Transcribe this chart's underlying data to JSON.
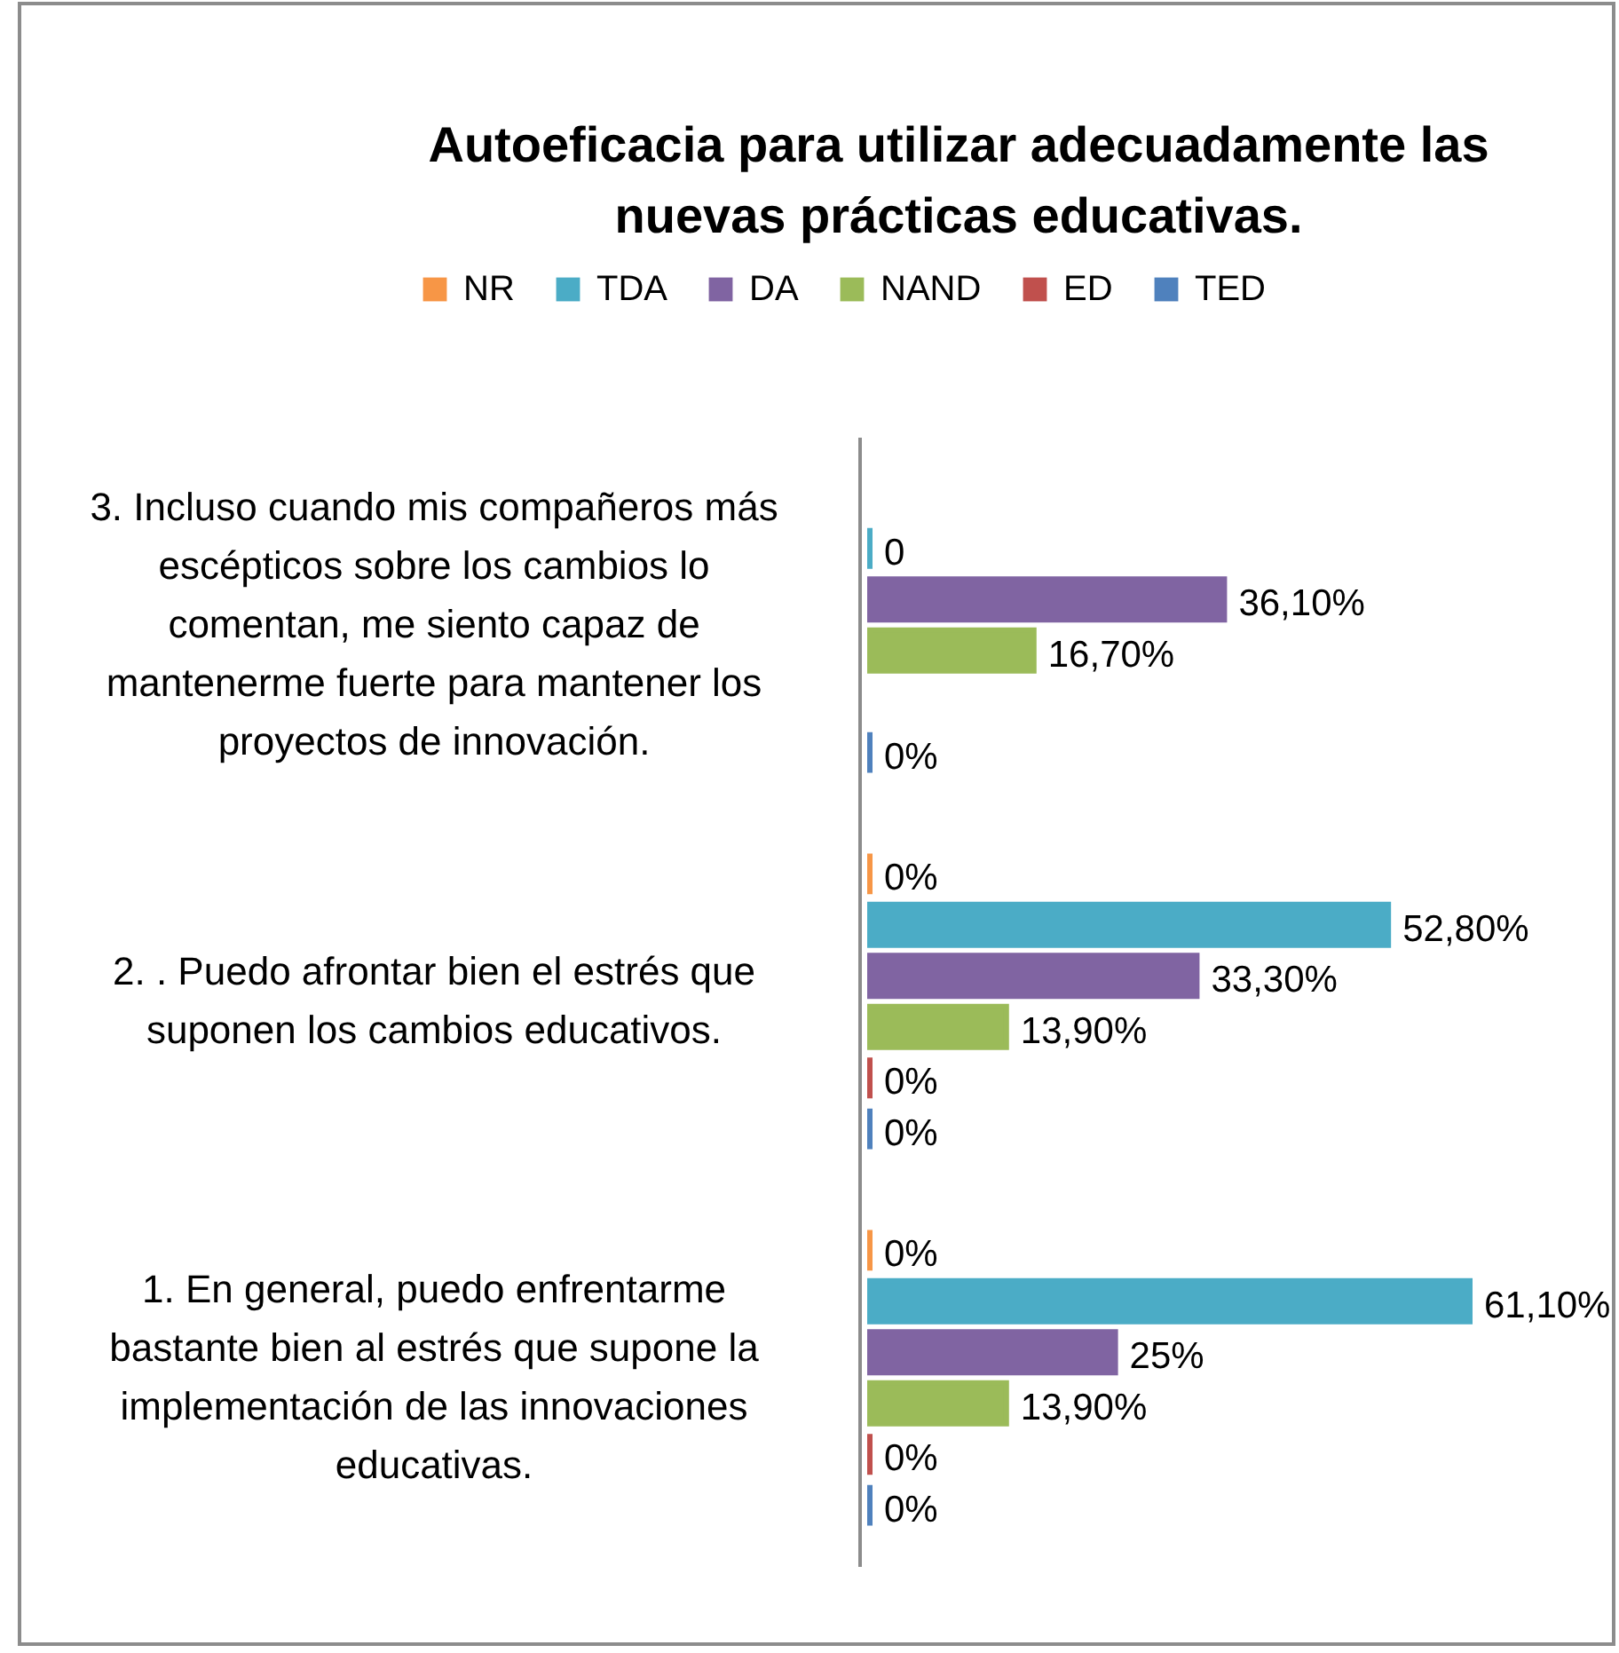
{
  "chart_data": {
    "type": "bar",
    "orientation": "horizontal",
    "title": "Autoeficacia para utilizar adecuadamente las nuevas prácticas educativas.",
    "categories": [
      "3. Incluso cuando mis compañeros más escépticos sobre los cambios lo comentan, me siento capaz de mantenerme fuerte para mantener los proyectos de innovación.",
      "2. . Puedo afrontar bien el estrés que suponen los cambios educativos.",
      "1. En general, puedo enfrentarme bastante bien al estrés que supone la implementación de las innovaciones educativas."
    ],
    "series": [
      {
        "name": "NR",
        "color": "#f79646",
        "values": [
          null,
          0,
          0
        ],
        "value_labels": [
          null,
          "0%",
          "0%"
        ]
      },
      {
        "name": "TDA",
        "color": "#4bacc6",
        "values": [
          0,
          52.8,
          61.1
        ],
        "value_labels": [
          "0",
          "52,80%",
          "61,10%"
        ]
      },
      {
        "name": "DA",
        "color": "#8064a2",
        "values": [
          36.1,
          33.3,
          25
        ],
        "value_labels": [
          "36,10%",
          "33,30%",
          "25%"
        ]
      },
      {
        "name": "NAND",
        "color": "#9bbb59",
        "values": [
          16.7,
          13.9,
          13.9
        ],
        "value_labels": [
          "16,70%",
          "13,90%",
          "13,90%"
        ]
      },
      {
        "name": "ED",
        "color": "#c0504d",
        "values": [
          null,
          0,
          0
        ],
        "value_labels": [
          null,
          "0%",
          "0%"
        ]
      },
      {
        "name": "TED",
        "color": "#4f81bd",
        "values": [
          0,
          0,
          0
        ],
        "value_labels": [
          "0%",
          "0%",
          "0%"
        ]
      }
    ],
    "legend": "top",
    "tick_labels": "y"
  }
}
